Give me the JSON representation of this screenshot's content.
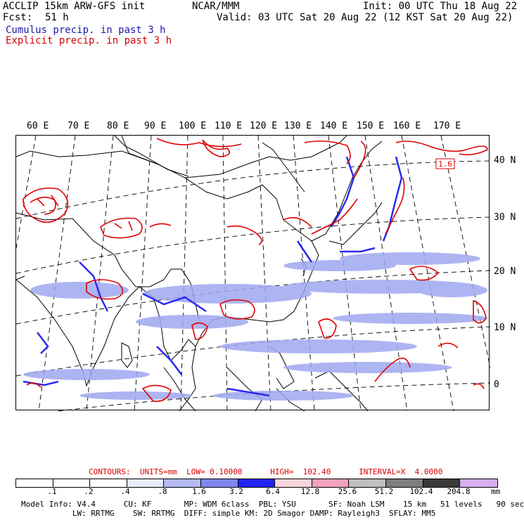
{
  "header": {
    "title": "ACCLIP 15km ARW-GFS init",
    "fcst_label": "Fcst:",
    "fcst_value": "51 h",
    "center": "NCAR/MMM",
    "init": "Init: 00 UTC Thu 18 Aug 22",
    "valid": "Valid: 03 UTC Sat 20 Aug 22 (12 KST Sat 20 Aug 22)",
    "legend_cumulus": "Cumulus precip. in past 3 h",
    "legend_explicit": "Explicit precip. in past 3 h"
  },
  "map": {
    "lon_labels": [
      "60 E",
      "70 E",
      "80 E",
      "90 E",
      "100 E",
      "110 E",
      "120 E",
      "130 E",
      "140 E",
      "150 E",
      "160 E",
      "170 E"
    ],
    "lat_labels": [
      "40 N",
      "30 N",
      "20 N",
      "10 N",
      "0"
    ],
    "max_label": "1.6",
    "colors": {
      "explicit": "#e00000",
      "cumulus": "#2a2af0",
      "cumulus_light": "#9fa8f0",
      "coast": "#000000",
      "grid": "#000000"
    }
  },
  "contours": {
    "text": "CONTOURS:  UNITS=mm  LOW= 0.10000      HIGH=  102.40      INTERVAL=X  4.0000"
  },
  "colorbar": {
    "colors": [
      "#ffffff",
      "#ffffff",
      "#ffffff",
      "#ffffff",
      "#e8ecfb",
      "#b4baf4",
      "#7f87ee",
      "#2323f5",
      "#f8d4dc",
      "#f4a2bc",
      "#bfbfbf",
      "#7e7e7e",
      "#3a3a3a",
      "#d7aef4"
    ],
    "ticks": [
      ".1",
      ".2",
      ".4",
      ".8",
      "1.6",
      "3.2",
      "6.4",
      "12.8",
      "25.6",
      "51.2",
      "102.4",
      "204.8"
    ],
    "unit": "mm"
  },
  "footer": {
    "line1": "Model Info: V4.4      CU: KF       MP: WDM 6class  PBL: YSU       SF: Noah LSM    15 km   51 levels   90 sec",
    "line2": "           LW: RRTMG    SW: RRTMG  DIFF: simple KM: 2D Smagor DAMP: Rayleigh3  SFLAY: MM5"
  }
}
